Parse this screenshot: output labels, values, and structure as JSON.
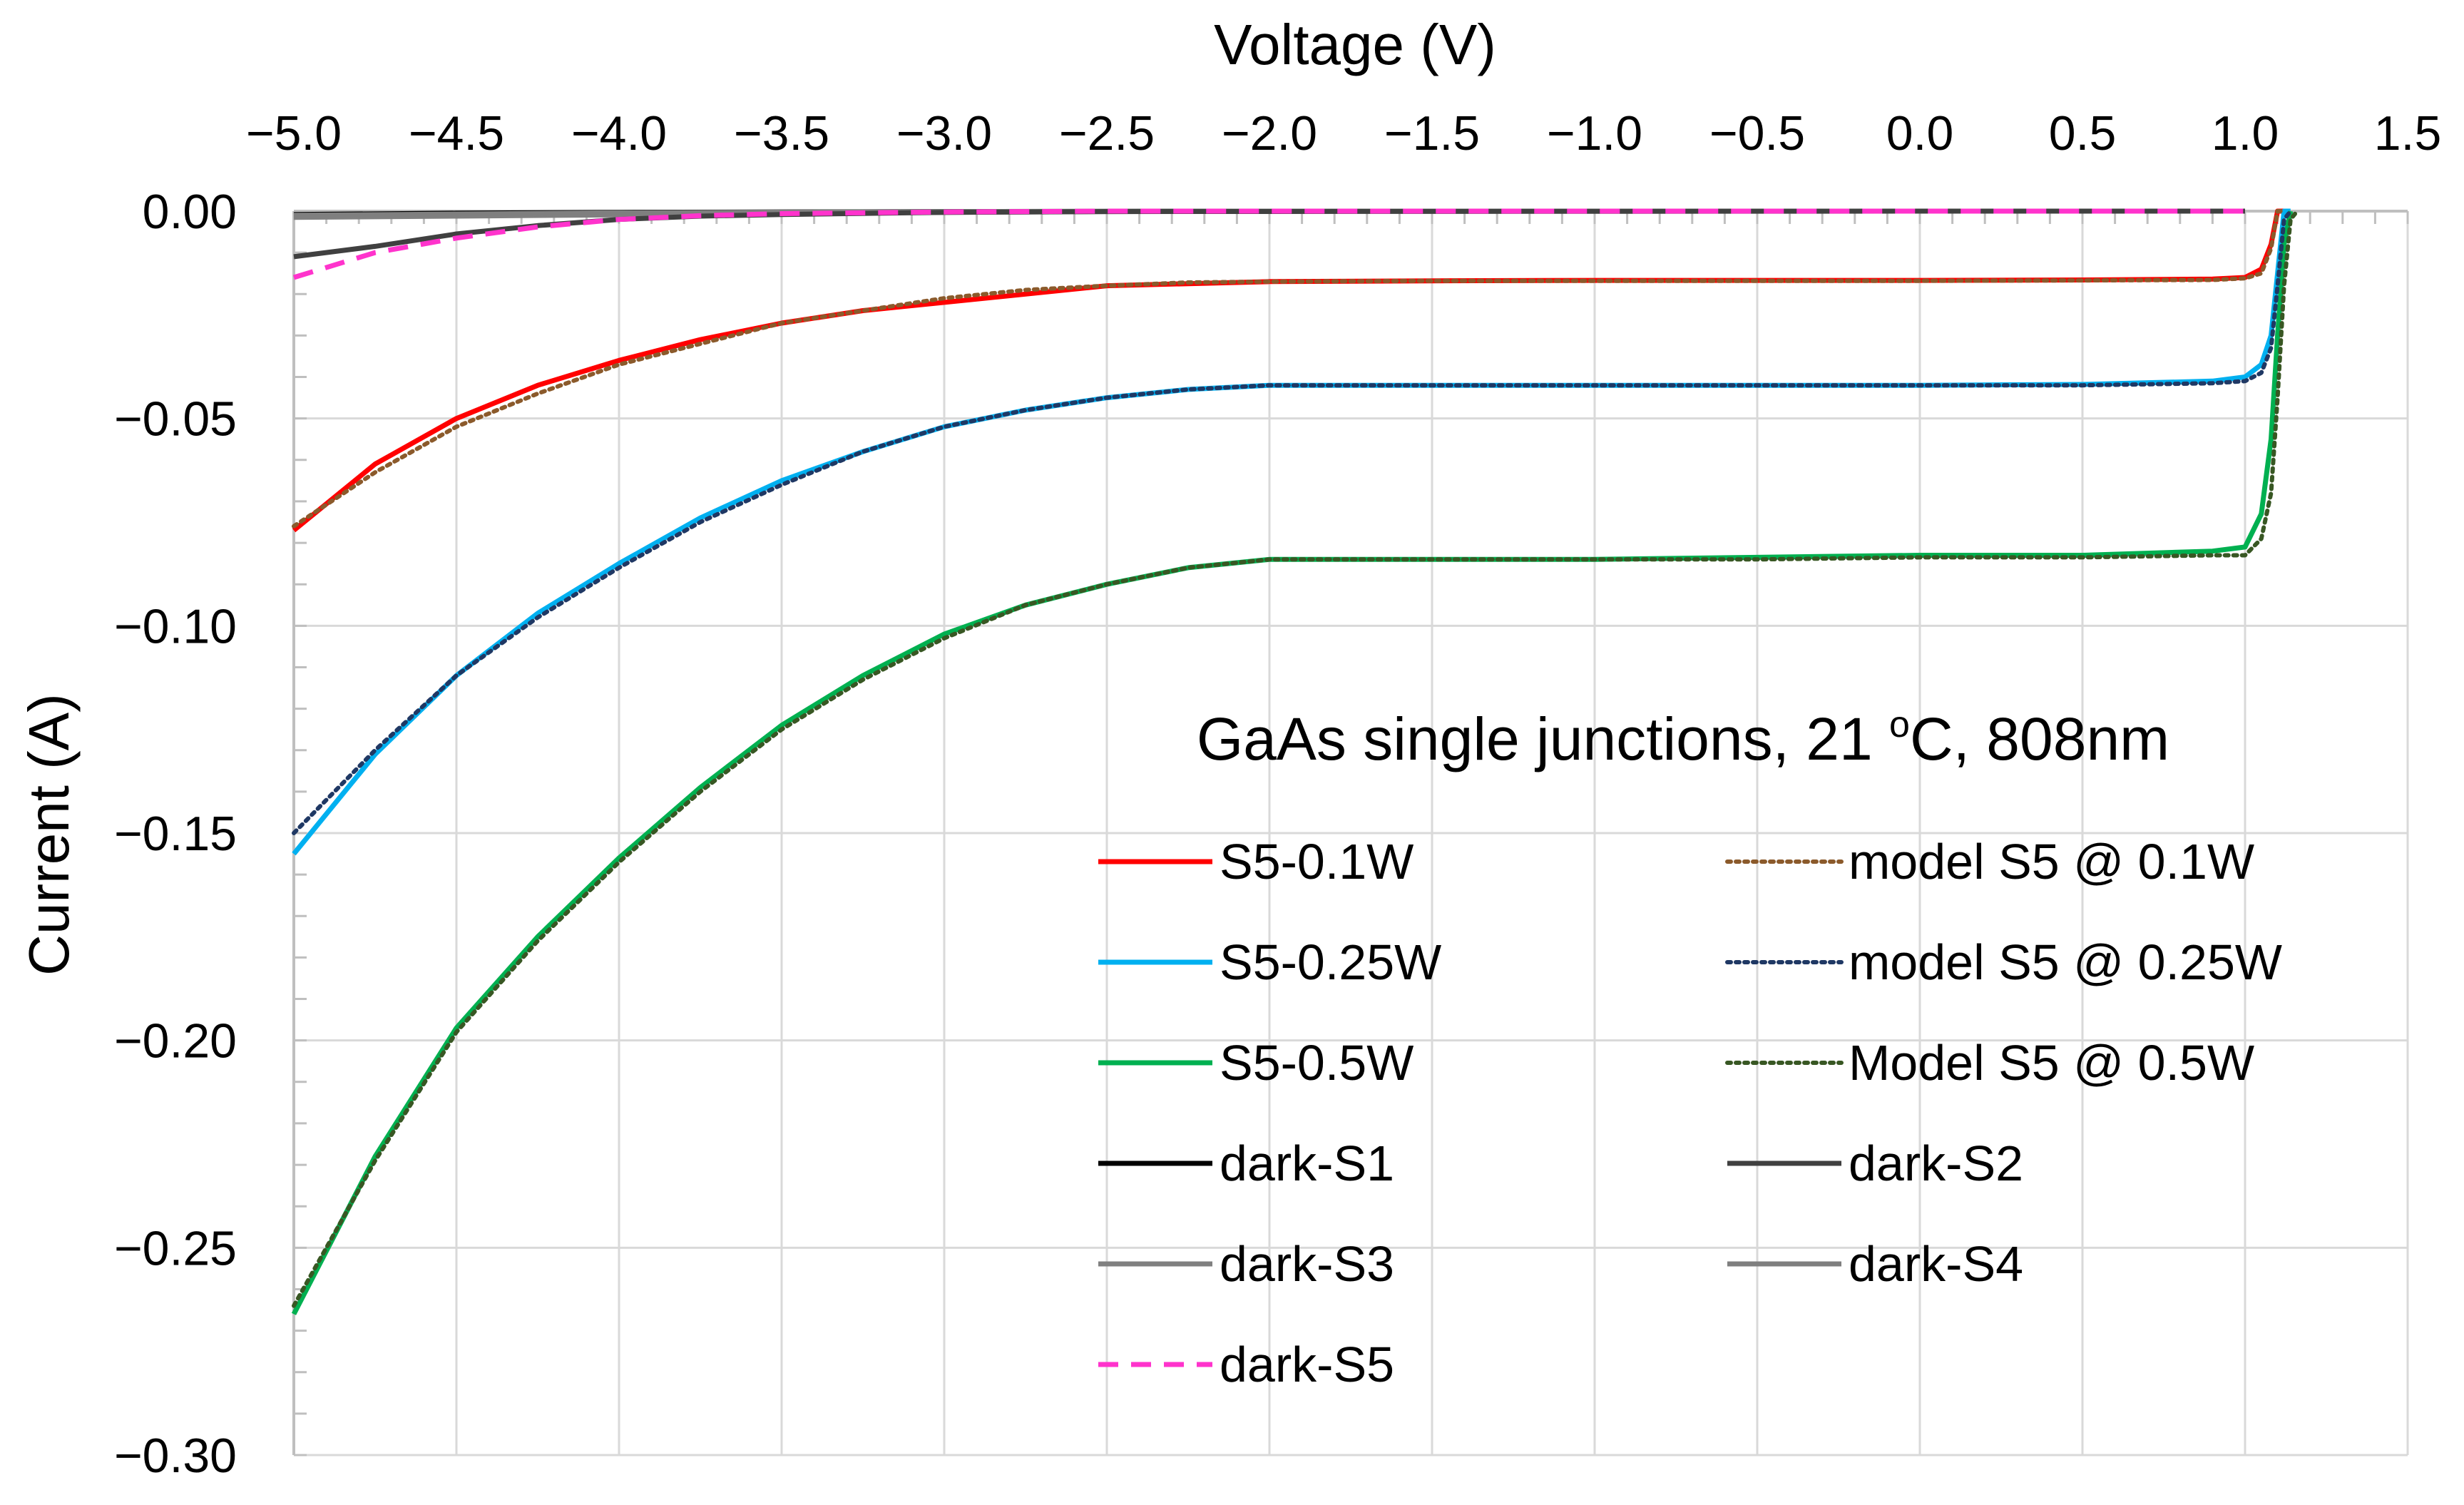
{
  "chart_data": {
    "type": "line",
    "title": "",
    "annotation": {
      "text_before": "GaAs single junctions, 21 ",
      "superscript": "o",
      "text_after": "C, 808nm"
    },
    "xlabel": "Voltage (V)",
    "ylabel": "Current (A)",
    "xlim": [
      -5.0,
      1.5
    ],
    "ylim": [
      -0.3,
      0.0
    ],
    "xaxis_position": "top",
    "x_ticks": [
      -5.0,
      -4.5,
      -4.0,
      -3.5,
      -3.0,
      -2.5,
      -2.0,
      -1.5,
      -1.0,
      -0.5,
      0.0,
      0.5,
      1.0,
      1.5
    ],
    "x_tick_labels": [
      "−5.0",
      "−4.5",
      "−4.0",
      "−3.5",
      "−3.0",
      "−2.5",
      "−2.0",
      "−1.5",
      "−1.0",
      "−0.5",
      "0.0",
      "0.5",
      "1.0",
      "1.5"
    ],
    "y_ticks": [
      0.0,
      -0.05,
      -0.1,
      -0.15,
      -0.2,
      -0.25,
      -0.3
    ],
    "y_tick_labels": [
      "0.00",
      "−0.05",
      "−0.10",
      "−0.15",
      "−0.20",
      "−0.25",
      "−0.30"
    ],
    "grid": true,
    "legend_position": "bottom-right",
    "series": [
      {
        "id": "s5-01w",
        "name": "S5-0.1W",
        "color": "#ff0000",
        "style": "solid",
        "x": [
          -5.0,
          -4.75,
          -4.5,
          -4.25,
          -4.0,
          -3.75,
          -3.5,
          -3.25,
          -3.0,
          -2.75,
          -2.5,
          -2.25,
          -2.0,
          -1.5,
          -1.0,
          -0.5,
          0.0,
          0.5,
          0.9,
          1.0,
          1.05,
          1.08,
          1.1,
          1.12
        ],
        "y": [
          -0.077,
          -0.061,
          -0.05,
          -0.042,
          -0.036,
          -0.031,
          -0.027,
          -0.024,
          -0.022,
          -0.02,
          -0.018,
          -0.0175,
          -0.017,
          -0.0168,
          -0.0167,
          -0.0167,
          -0.0167,
          -0.0166,
          -0.0164,
          -0.016,
          -0.014,
          -0.008,
          0.0,
          0.0
        ]
      },
      {
        "id": "s5-025w",
        "name": "S5-0.25W",
        "color": "#00b0f0",
        "style": "solid",
        "x": [
          -5.0,
          -4.75,
          -4.5,
          -4.25,
          -4.0,
          -3.75,
          -3.5,
          -3.25,
          -3.0,
          -2.75,
          -2.5,
          -2.25,
          -2.0,
          -1.5,
          -1.0,
          -0.5,
          0.0,
          0.5,
          0.9,
          1.0,
          1.05,
          1.08,
          1.1,
          1.12,
          1.14
        ],
        "y": [
          -0.155,
          -0.131,
          -0.112,
          -0.097,
          -0.085,
          -0.074,
          -0.065,
          -0.058,
          -0.052,
          -0.048,
          -0.045,
          -0.043,
          -0.042,
          -0.042,
          -0.042,
          -0.042,
          -0.042,
          -0.0418,
          -0.041,
          -0.04,
          -0.037,
          -0.03,
          -0.015,
          0.0,
          0.0
        ]
      },
      {
        "id": "s5-05w",
        "name": "S5-0.5W",
        "color": "#00b050",
        "style": "solid",
        "x": [
          -5.0,
          -4.75,
          -4.5,
          -4.25,
          -4.0,
          -3.75,
          -3.5,
          -3.25,
          -3.0,
          -2.75,
          -2.5,
          -2.25,
          -2.0,
          -1.5,
          -1.0,
          -0.5,
          0.0,
          0.5,
          0.9,
          1.0,
          1.05,
          1.08,
          1.1,
          1.12,
          1.14
        ],
        "y": [
          -0.266,
          -0.228,
          -0.197,
          -0.175,
          -0.156,
          -0.139,
          -0.124,
          -0.112,
          -0.102,
          -0.095,
          -0.09,
          -0.086,
          -0.084,
          -0.084,
          -0.084,
          -0.0835,
          -0.083,
          -0.083,
          -0.082,
          -0.081,
          -0.073,
          -0.055,
          -0.03,
          -0.008,
          0.0
        ]
      },
      {
        "id": "model-01w",
        "name": "model S5 @ 0.1W",
        "color": "#8b5a2b",
        "style": "dotted",
        "x": [
          -5.0,
          -4.75,
          -4.5,
          -4.25,
          -4.0,
          -3.75,
          -3.5,
          -3.25,
          -3.0,
          -2.75,
          -2.5,
          -2.25,
          -2.0,
          -1.5,
          -1.0,
          -0.5,
          0.0,
          0.5,
          0.9,
          1.0,
          1.05,
          1.08,
          1.1,
          1.12
        ],
        "y": [
          -0.076,
          -0.063,
          -0.052,
          -0.044,
          -0.037,
          -0.032,
          -0.027,
          -0.024,
          -0.021,
          -0.019,
          -0.018,
          -0.0172,
          -0.017,
          -0.0168,
          -0.0168,
          -0.0168,
          -0.0168,
          -0.0167,
          -0.0166,
          -0.0162,
          -0.015,
          -0.009,
          0.0,
          0.0
        ]
      },
      {
        "id": "model-025w",
        "name": "model S5 @ 0.25W",
        "color": "#1f3864",
        "style": "dotted",
        "x": [
          -5.0,
          -4.75,
          -4.5,
          -4.25,
          -4.0,
          -3.75,
          -3.5,
          -3.25,
          -3.0,
          -2.75,
          -2.5,
          -2.25,
          -2.0,
          -1.5,
          -1.0,
          -0.5,
          0.0,
          0.5,
          0.9,
          1.0,
          1.05,
          1.08,
          1.1,
          1.12,
          1.14
        ],
        "y": [
          -0.15,
          -0.13,
          -0.112,
          -0.098,
          -0.086,
          -0.075,
          -0.066,
          -0.058,
          -0.052,
          -0.048,
          -0.045,
          -0.043,
          -0.042,
          -0.042,
          -0.042,
          -0.042,
          -0.042,
          -0.042,
          -0.0415,
          -0.041,
          -0.039,
          -0.033,
          -0.018,
          -0.002,
          0.0
        ]
      },
      {
        "id": "model-05w",
        "name": "Model S5 @ 0.5W",
        "color": "#385723",
        "style": "dotted",
        "x": [
          -5.0,
          -4.75,
          -4.5,
          -4.25,
          -4.0,
          -3.75,
          -3.5,
          -3.25,
          -3.0,
          -2.75,
          -2.5,
          -2.25,
          -2.0,
          -1.5,
          -1.0,
          -0.5,
          0.0,
          0.5,
          0.9,
          1.0,
          1.05,
          1.08,
          1.1,
          1.12,
          1.14,
          1.16
        ],
        "y": [
          -0.264,
          -0.229,
          -0.198,
          -0.176,
          -0.157,
          -0.14,
          -0.125,
          -0.113,
          -0.103,
          -0.095,
          -0.09,
          -0.086,
          -0.084,
          -0.084,
          -0.084,
          -0.084,
          -0.0835,
          -0.0835,
          -0.083,
          -0.083,
          -0.079,
          -0.068,
          -0.045,
          -0.018,
          -0.002,
          0.0
        ]
      },
      {
        "id": "dark-s1",
        "name": "dark-S1",
        "color": "#000000",
        "style": "solid",
        "x": [
          -5.0,
          -4.5,
          -4.0,
          -3.0,
          -2.0,
          0.0,
          1.0
        ],
        "y": [
          -0.0008,
          -0.0005,
          -0.0003,
          -0.0001,
          0.0,
          0.0,
          0.0
        ]
      },
      {
        "id": "dark-s2",
        "name": "dark-S2",
        "color": "#404040",
        "style": "solid",
        "x": [
          -5.0,
          -4.75,
          -4.5,
          -4.25,
          -4.0,
          -3.75,
          -3.5,
          -3.0,
          -2.5,
          0.0,
          1.0
        ],
        "y": [
          -0.011,
          -0.0085,
          -0.0055,
          -0.0035,
          -0.002,
          -0.0012,
          -0.0008,
          -0.0003,
          -0.0001,
          0.0,
          0.0
        ]
      },
      {
        "id": "dark-s3",
        "name": "dark-S3",
        "color": "#808080",
        "style": "solid",
        "x": [
          -5.0,
          -4.5,
          -4.0,
          -3.5,
          -3.0,
          -2.5,
          -2.0,
          0.0,
          1.0
        ],
        "y": [
          -0.0015,
          -0.0012,
          -0.0009,
          -0.0006,
          -0.0003,
          -0.0001,
          0.0,
          0.0,
          0.0
        ]
      },
      {
        "id": "dark-s4",
        "name": "dark-S4",
        "color": "#7f7f7f",
        "style": "solid",
        "x": [
          -5.0,
          -4.5,
          -4.0,
          -3.0,
          -2.0,
          0.0,
          1.0
        ],
        "y": [
          -0.001,
          -0.0007,
          -0.0004,
          -0.0001,
          0.0,
          0.0,
          0.0
        ]
      },
      {
        "id": "dark-s5",
        "name": "dark-S5",
        "color": "#ff33cc",
        "style": "dashed",
        "x": [
          -5.0,
          -4.75,
          -4.5,
          -4.25,
          -4.0,
          -3.75,
          -3.5,
          -3.0,
          -2.5,
          0.0,
          1.0
        ],
        "y": [
          -0.016,
          -0.01,
          -0.0065,
          -0.0038,
          -0.002,
          -0.0011,
          -0.0006,
          -0.0002,
          0.0,
          0.0,
          0.0
        ]
      }
    ]
  }
}
